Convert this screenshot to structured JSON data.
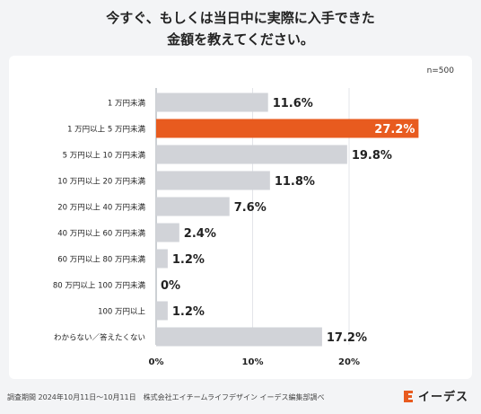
{
  "title_line1": "今すぐ、もしくは当日中に実際に入手できた",
  "title_line2": "金額を教えてください。",
  "sample_size": "n=500",
  "footer": "調査期間 2024年10月11日〜10月11日　株式会社エイチームライフデザイン イーデス編集部調べ",
  "logo_text": "イーデス",
  "colors": {
    "bar": "#d1d3d8",
    "highlight": "#e85b1f",
    "accent": "#e85b1f"
  },
  "chart_data": {
    "type": "bar",
    "orientation": "horizontal",
    "categories": [
      "1 万円未満",
      "1 万円以上 5 万円未満",
      "5 万円以上 10 万円未満",
      "10 万円以上 20 万円未満",
      "20 万円以上 40 万円未満",
      "40 万円以上 60 万円未満",
      "60 万円以上 80 万円未満",
      "80 万円以上 100 万円未満",
      "100 万円以上",
      "わからない／答えたくない"
    ],
    "values": [
      11.6,
      27.2,
      19.8,
      11.8,
      7.6,
      2.4,
      1.2,
      0,
      1.2,
      17.2
    ],
    "value_labels": [
      "11.6%",
      "27.2%",
      "19.8%",
      "11.8%",
      "7.6%",
      "2.4%",
      "1.2%",
      "0%",
      "1.2%",
      "17.2%"
    ],
    "highlight_index": 1,
    "xlim": [
      0,
      30
    ],
    "x_ticks": [
      0,
      10,
      20
    ],
    "x_tick_labels": [
      "0%",
      "10%",
      "20%"
    ],
    "grid": true,
    "unit": "%"
  }
}
